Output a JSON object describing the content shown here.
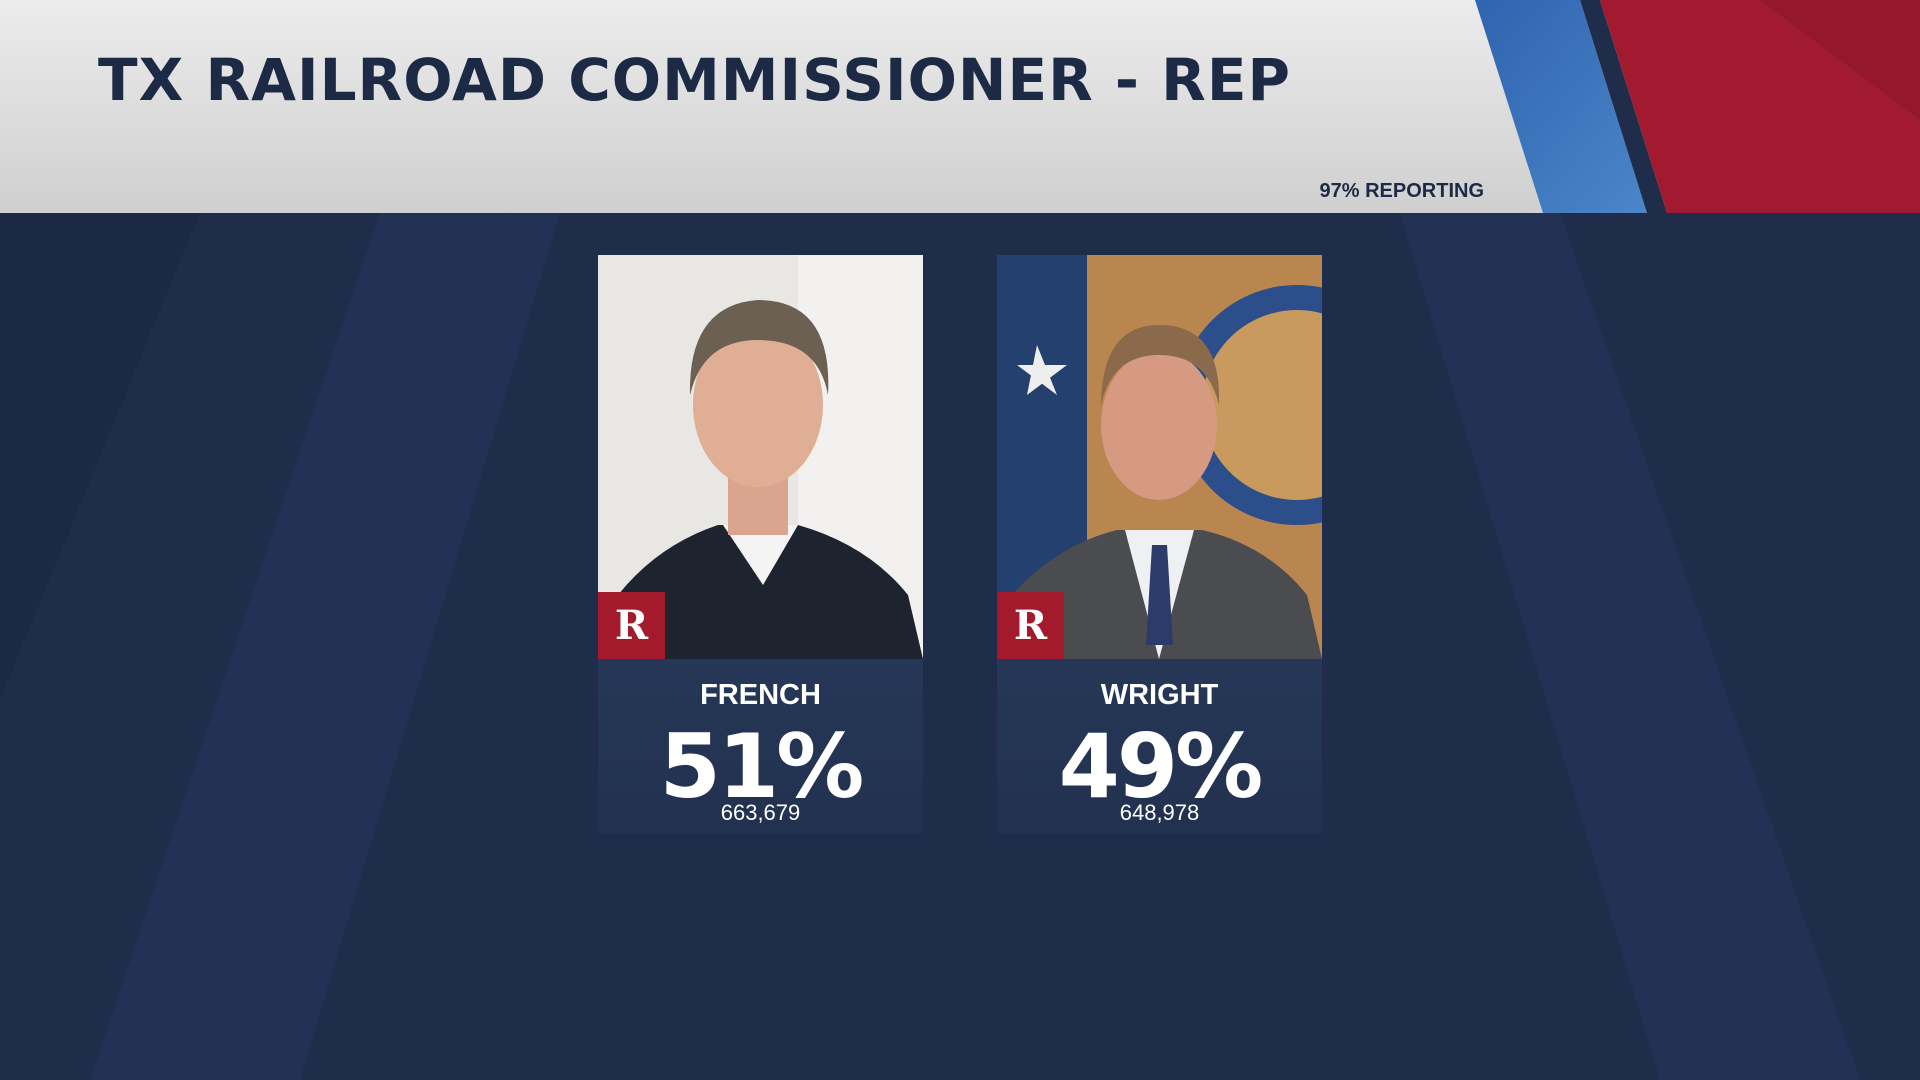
{
  "header": {
    "title": "TX RAILROAD COMMISSIONER - REP",
    "reporting": "97% REPORTING"
  },
  "candidates": [
    {
      "name": "FRENCH",
      "party": "R",
      "percent": "51%",
      "votes": "663,679"
    },
    {
      "name": "WRIGHT",
      "party": "R",
      "percent": "49%",
      "votes": "648,978"
    }
  ]
}
